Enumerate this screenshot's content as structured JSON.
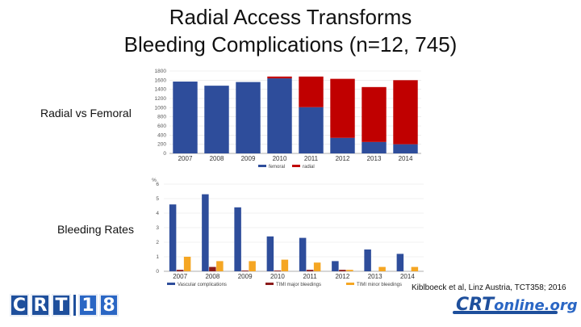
{
  "slide": {
    "title_line1": "Radial Access Transforms",
    "title_line2": "Bleeding Complications (n=12, 745)",
    "label_chart1": "Radial vs Femoral",
    "label_chart2": "Bleeding Rates",
    "citation": "Kiblboeck et al, Linz Austria, TCT358; 2016"
  },
  "logos": {
    "left_glyphs": [
      "C",
      "R",
      "T",
      "1",
      "8"
    ],
    "right_part1": "CRT",
    "right_part2": "online.org"
  },
  "colors": {
    "blue": "#2e4d9b",
    "red": "#c00000",
    "dark_red": "#8b1a1a",
    "orange": "#f5a623"
  },
  "chart_data": [
    {
      "type": "bar",
      "stacked": true,
      "categories": [
        "2007",
        "2008",
        "2009",
        "2010",
        "2011",
        "2012",
        "2013",
        "2014"
      ],
      "series": [
        {
          "name": "femoral",
          "values": [
            1570,
            1480,
            1560,
            1640,
            1010,
            340,
            250,
            200
          ]
        },
        {
          "name": "radial",
          "values": [
            0,
            0,
            0,
            40,
            670,
            1290,
            1200,
            1400
          ]
        }
      ],
      "yticks": [
        0,
        200,
        400,
        600,
        800,
        1000,
        1200,
        1400,
        1600,
        1800
      ],
      "ylim": [
        0,
        1800
      ],
      "legend_position": "bottom"
    },
    {
      "type": "bar",
      "categories": [
        "2007",
        "2008",
        "2009",
        "2010",
        "2011",
        "2012",
        "2013",
        "2014"
      ],
      "ylabel": "%",
      "series": [
        {
          "name": "Vascular complications",
          "values": [
            4.6,
            5.3,
            4.4,
            2.4,
            2.3,
            0.7,
            1.5,
            1.2
          ]
        },
        {
          "name": "TIMI major bleedings",
          "values": [
            0.1,
            0.3,
            0.05,
            0.05,
            0.1,
            0.1,
            0.0,
            0.0
          ]
        },
        {
          "name": "TIMI minor bleedings",
          "values": [
            1.0,
            0.7,
            0.7,
            0.8,
            0.6,
            0.1,
            0.3,
            0.3
          ]
        }
      ],
      "yticks": [
        0,
        1,
        2,
        3,
        4,
        5,
        6
      ],
      "ylim": [
        0,
        6
      ],
      "legend_position": "bottom"
    }
  ]
}
